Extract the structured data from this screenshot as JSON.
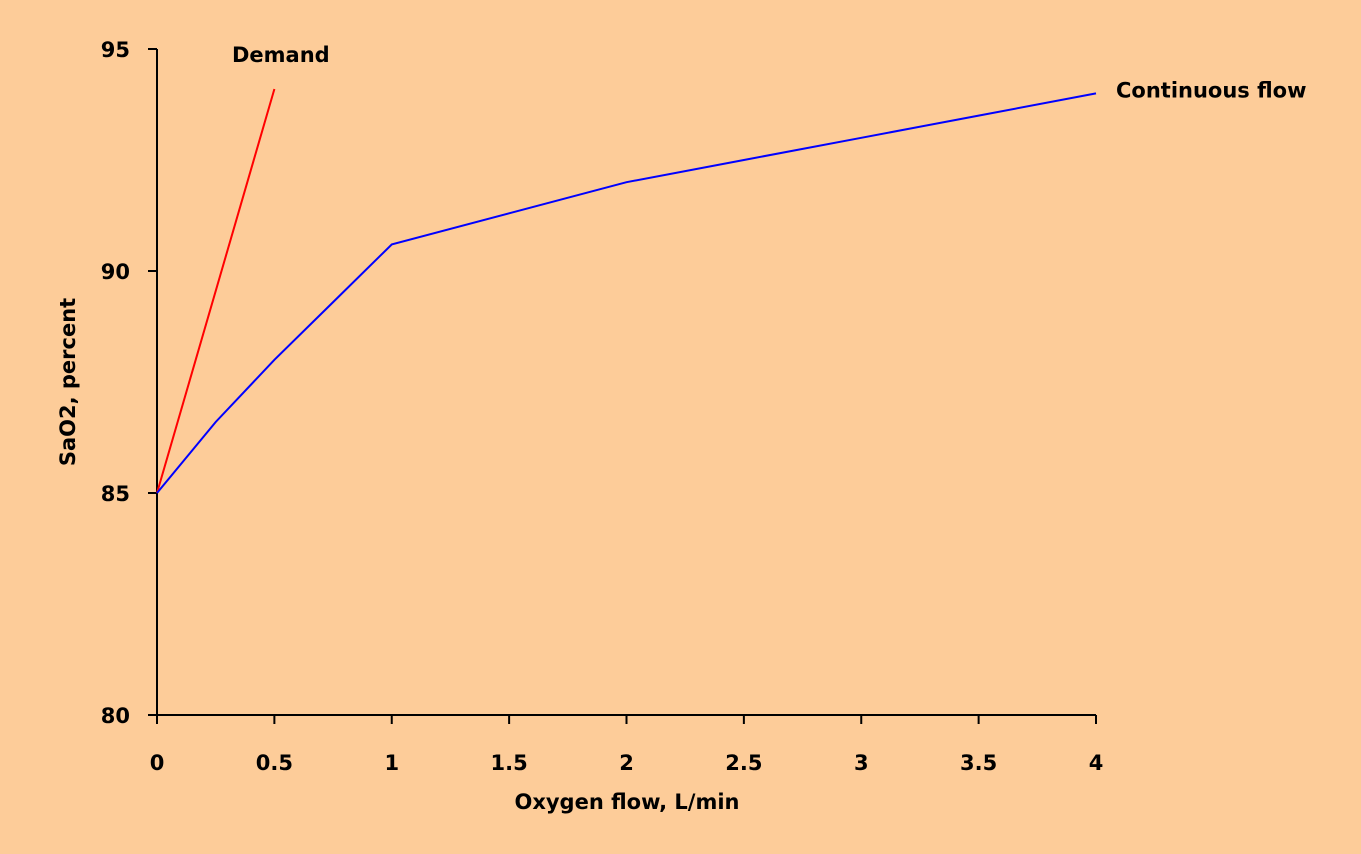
{
  "colors": {
    "background": "#fdcc99",
    "axis": "#000000",
    "demand": "#ff0000",
    "continuous": "#0000ff"
  },
  "chart_data": {
    "type": "line",
    "title": "",
    "xlabel": "Oxygen flow, L/min",
    "ylabel": "SaO2, percent",
    "xlim": [
      0,
      4
    ],
    "ylim": [
      80,
      95
    ],
    "grid": false,
    "x_ticks": [
      {
        "value": 0,
        "label": "0"
      },
      {
        "value": 0.5,
        "label": "0.5"
      },
      {
        "value": 1,
        "label": "1"
      },
      {
        "value": 1.5,
        "label": "1.5"
      },
      {
        "value": 2,
        "label": "2"
      },
      {
        "value": 2.5,
        "label": "2.5"
      },
      {
        "value": 3,
        "label": "3"
      },
      {
        "value": 3.5,
        "label": "3.5"
      },
      {
        "value": 4,
        "label": "4"
      }
    ],
    "y_ticks": [
      {
        "value": 80,
        "label": "80"
      },
      {
        "value": 85,
        "label": "85"
      },
      {
        "value": 90,
        "label": "90"
      },
      {
        "value": 95,
        "label": "95"
      }
    ],
    "series": [
      {
        "name": "Demand",
        "color": "#ff0000",
        "x": [
          0,
          0.5
        ],
        "y": [
          85,
          94.1
        ]
      },
      {
        "name": "Continuous flow",
        "color": "#0000ff",
        "x": [
          0,
          0.25,
          0.5,
          0.75,
          1,
          1.5,
          2,
          2.5,
          3,
          3.5,
          4
        ],
        "y": [
          85,
          86.6,
          88,
          89.3,
          90.6,
          91.3,
          92,
          92.5,
          93,
          93.5,
          94
        ]
      }
    ]
  }
}
